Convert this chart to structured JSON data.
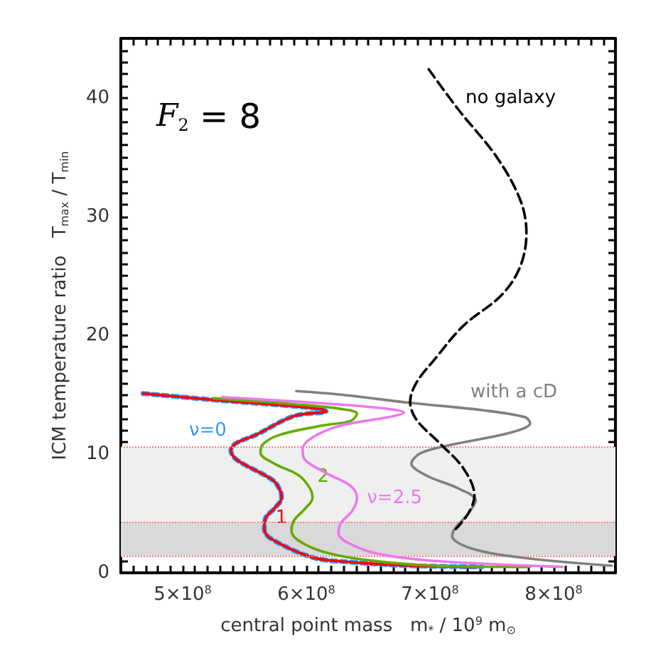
{
  "chart_data": {
    "type": "line",
    "xlabel": "central point mass   m$_{*}$ / 10$^{9}$ m$_{⊙}$",
    "ylabel": "ICM temperature ratio   T$_{max}$ / T$_{min}$",
    "annotations": [
      "F$_{2}$ = 8"
    ],
    "xlim": [
      450000000,
      850000000
    ],
    "ylim": [
      0,
      45
    ],
    "xticks": [
      {
        "value": 500000000,
        "label": "5×10$^{8}$"
      },
      {
        "value": 600000000,
        "label": "6×10$^{8}$"
      },
      {
        "value": 700000000,
        "label": "7×10$^{8}$"
      },
      {
        "value": 800000000,
        "label": "8×10$^{8}$"
      }
    ],
    "yticks": [
      0,
      10,
      20,
      30,
      40
    ],
    "grid": false,
    "legend": false,
    "marker": "none",
    "bands": [
      {
        "axis": "y",
        "from": 1.4,
        "to": 4.3,
        "color": "#d9d9d9"
      },
      {
        "axis": "y",
        "from": 4.3,
        "to": 10.6,
        "color": "#efefef"
      }
    ],
    "ref_lines": [
      {
        "axis": "y",
        "value": 1.4,
        "color": "#ff8080",
        "line_style": "dotted"
      },
      {
        "axis": "y",
        "value": 4.3,
        "color": "#ff8080",
        "line_style": "dotted"
      },
      {
        "axis": "y",
        "value": 10.6,
        "color": "#ff8080",
        "line_style": "dotted"
      }
    ],
    "series": [
      {
        "name": "ν=0",
        "color": "#3399ff",
        "line_style": "dotted",
        "x": [
          468000000.0,
          532000000.0,
          582000000.0,
          611000000.0,
          616000000.0,
          590000000.0,
          559000000.0,
          543000000.0,
          539000000.0,
          544000000.0,
          573000000.0,
          579000000.0,
          580000000.0,
          574000000.0,
          567000000.0,
          566000000.0,
          571000000.0,
          605000000.0,
          636000000.0,
          685000000.0,
          742000000.0
        ],
        "values": [
          15.1,
          14.5,
          14.1,
          13.8,
          13.6,
          13.2,
          11.6,
          10.9,
          10.3,
          9.5,
          7.8,
          6.9,
          6.3,
          5.4,
          4.6,
          3.7,
          2.9,
          1.3,
          0.9,
          0.6,
          0.5
        ]
      },
      {
        "name": "1",
        "color": "#ff0000",
        "line_style": "solid",
        "x": [
          468000000.0,
          532000000.0,
          582000000.0,
          611000000.0,
          616000000.0,
          590000000.0,
          559000000.0,
          543000000.0,
          539000000.0,
          544000000.0,
          573000000.0,
          579000000.0,
          580000000.0,
          574000000.0,
          567000000.0,
          566000000.0,
          571000000.0,
          605000000.0,
          636000000.0,
          685000000.0,
          742000000.0
        ],
        "values": [
          15.1,
          14.5,
          14.1,
          13.8,
          13.6,
          13.2,
          11.6,
          10.9,
          10.3,
          9.5,
          7.8,
          6.9,
          6.3,
          5.4,
          4.6,
          3.7,
          2.9,
          1.3,
          0.9,
          0.6,
          0.5
        ]
      },
      {
        "name": "2",
        "color": "#66aa00",
        "line_style": "solid",
        "x": [
          525000000.0,
          590000000.0,
          628000000.0,
          641000000.0,
          636000000.0,
          613000000.0,
          578000000.0,
          564000000.0,
          563000000.0,
          574000000.0,
          594000000.0,
          603000000.0,
          605000000.0,
          599000000.0,
          590000000.0,
          588000000.0,
          594000000.0,
          613000000.0,
          647000000.0,
          704000000.0,
          781000000.0
        ],
        "values": [
          14.7,
          14.2,
          13.8,
          13.4,
          12.8,
          12.4,
          11.6,
          10.7,
          10.1,
          9.2,
          8.2,
          7.1,
          6.3,
          5.4,
          4.4,
          3.5,
          2.7,
          1.8,
          1.1,
          0.6,
          0.5
        ]
      },
      {
        "name": "ν=2.5",
        "color": "#ee77ee",
        "line_style": "solid",
        "x": [
          532000000.0,
          609000000.0,
          658000000.0,
          679000000.0,
          666000000.0,
          628000000.0,
          605000000.0,
          597000000.0,
          599000000.0,
          616000000.0,
          636000000.0,
          641000000.0,
          637000000.0,
          628000000.0,
          626000000.0,
          634000000.0,
          658000000.0,
          704000000.0,
          807000000.0
        ],
        "values": [
          14.8,
          14.3,
          13.9,
          13.5,
          13.1,
          12.4,
          11.4,
          10.4,
          9.5,
          8.4,
          7.3,
          6.3,
          5.2,
          4.2,
          3.3,
          2.5,
          1.6,
          1.0,
          0.5
        ]
      },
      {
        "name": "with a cD",
        "color": "#808080",
        "line_style": "solid",
        "x": [
          592000000.0,
          628000000.0,
          685000000.0,
          742000000.0,
          777000000.0,
          781000000.0,
          765000000.0,
          723000000.0,
          693000000.0,
          685000000.0,
          697000000.0,
          723000000.0,
          737000000.0,
          731000000.0,
          720000000.0,
          718000000.0,
          735000000.0,
          781000000.0,
          847000000.0
        ],
        "values": [
          15.3,
          15.0,
          14.3,
          13.7,
          13.1,
          12.6,
          11.8,
          10.9,
          10.1,
          9.2,
          8.2,
          7.1,
          6.1,
          5.0,
          3.7,
          3.1,
          2.0,
          1.2,
          0.6
        ]
      },
      {
        "name": "no galaxy",
        "color": "#000000",
        "line_style": "dashed",
        "x": [
          699000000.0,
          723000000.0,
          754000000.0,
          773000000.0,
          778000000.0,
          773000000.0,
          758000000.0,
          727000000.0,
          704000000.0,
          689000000.0,
          684000000.0,
          689000000.0,
          708000000.0,
          727000000.0,
          736000000.0,
          731000000.0,
          721000000.0
        ],
        "values": [
          42.4,
          39.0,
          35.0,
          31.4,
          28.6,
          25.8,
          23.4,
          20.8,
          18.0,
          16.0,
          14.4,
          12.9,
          10.9,
          8.8,
          6.5,
          5.0,
          3.7
        ]
      }
    ]
  }
}
